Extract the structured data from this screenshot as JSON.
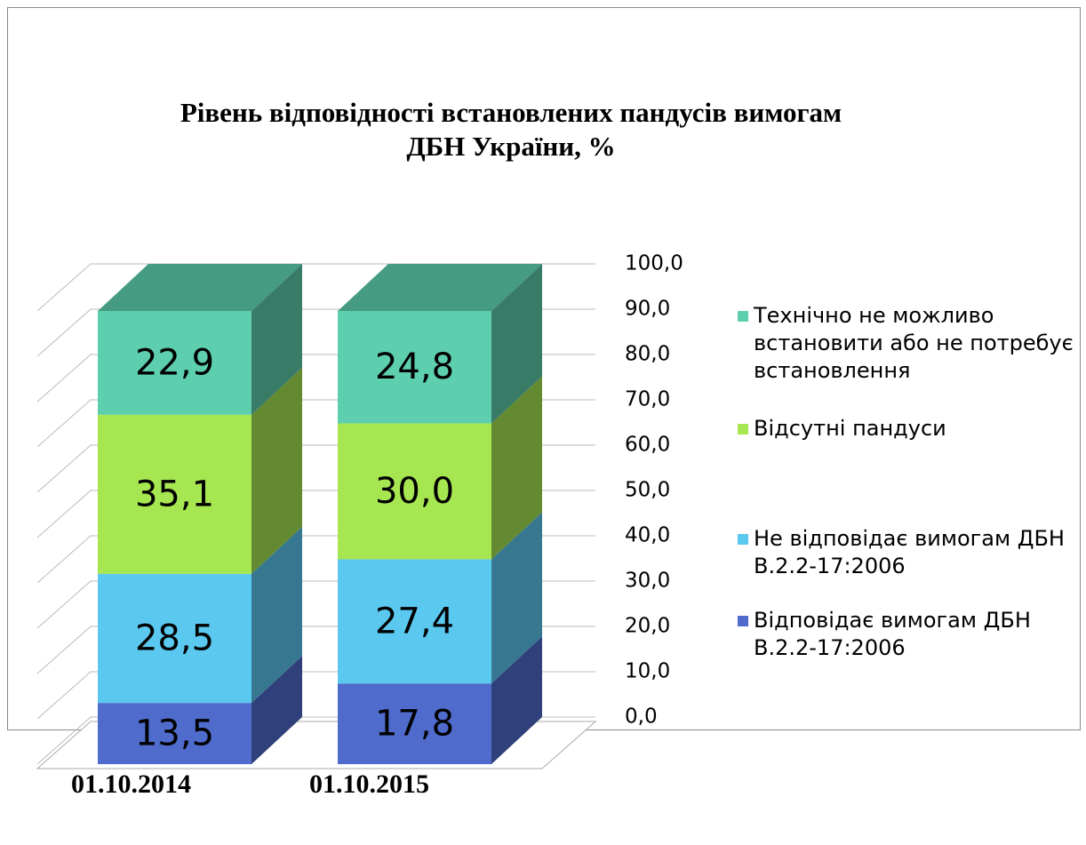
{
  "chart_data": {
    "type": "bar3d_stacked",
    "title": "Рівень відповідності встановлених пандусів вимогам ДБН України, %",
    "categories": [
      "01.10.2014",
      "01.10.2015"
    ],
    "series": [
      {
        "name": "Відповідає вимогам ДБН В.2.2-17:2006",
        "color": "#4f6bcc",
        "values": [
          13.5,
          17.8
        ],
        "value_labels": [
          "13,5",
          "17,8"
        ]
      },
      {
        "name": "Не відповідає вимогам ДБН В.2.2-17:2006",
        "color": "#5bc8f0",
        "values": [
          28.5,
          27.4
        ],
        "value_labels": [
          "28,5",
          "27,4"
        ]
      },
      {
        "name": "Відсутні пандуси",
        "color": "#a6e651",
        "values": [
          35.1,
          30.0
        ],
        "value_labels": [
          "35,1",
          "30,0"
        ]
      },
      {
        "name": "Технічно не можливо встановити або не потребує встановлення",
        "color": "#5dcfae",
        "values": [
          22.9,
          24.8
        ],
        "value_labels": [
          "22,9",
          "24,8"
        ]
      }
    ],
    "ylim": [
      0,
      100
    ],
    "yticks": [
      {
        "value": 0,
        "label": "0,0"
      },
      {
        "value": 10,
        "label": "10,0"
      },
      {
        "value": 20,
        "label": "20,0"
      },
      {
        "value": 30,
        "label": "30,0"
      },
      {
        "value": 40,
        "label": "40,0"
      },
      {
        "value": 50,
        "label": "50,0"
      },
      {
        "value": 60,
        "label": "60,0"
      },
      {
        "value": 70,
        "label": "70,0"
      },
      {
        "value": 80,
        "label": "80,0"
      },
      {
        "value": 90,
        "label": "90,0"
      },
      {
        "value": 100,
        "label": "100,0"
      }
    ],
    "grid": true,
    "legend": "right"
  }
}
